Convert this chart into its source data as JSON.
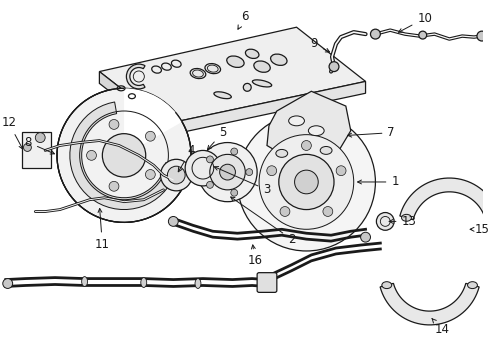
{
  "background_color": "#ffffff",
  "line_color": "#1a1a1a",
  "label_color": "#111111",
  "label_fontsize": 8.5,
  "fig_width": 4.89,
  "fig_height": 3.6,
  "dpi": 100,
  "panel_fill": "#f2f2f2",
  "panel_shadow": "#e0e0e0"
}
